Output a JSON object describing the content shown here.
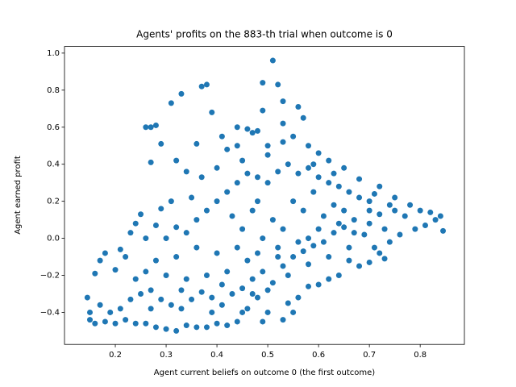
{
  "chart_data": {
    "type": "scatter",
    "title": "Agents' profits on the 883-th trial when outcome is 0",
    "x_label": "Agent current beliefs on outcome 0 (the first outcome)",
    "y_label": "Agent earned profit",
    "color": "#1f77b4",
    "xlim": [
      0.1,
      0.887
    ],
    "ylim": [
      -0.573,
      1.036
    ],
    "xticks": [
      0.2,
      0.3,
      0.4,
      0.5,
      0.6,
      0.7,
      0.8
    ],
    "yticks": [
      {
        "value": -0.4,
        "label": "−0.4"
      },
      {
        "value": -0.2,
        "label": "−0.2"
      },
      {
        "value": 0,
        "label": "0.0"
      },
      0.2,
      0.4,
      0.6,
      0.8,
      {
        "value": 1,
        "label": "1.0"
      }
    ],
    "x": [
      0.51,
      0.49,
      0.52,
      0.38,
      0.37,
      0.33,
      0.31,
      0.53,
      0.49,
      0.56,
      0.39,
      0.27,
      0.28,
      0.26,
      0.44,
      0.46,
      0.48,
      0.36,
      0.29,
      0.27,
      0.32,
      0.42,
      0.44,
      0.5,
      0.47,
      0.53,
      0.57,
      0.55,
      0.58,
      0.6,
      0.62,
      0.65,
      0.68,
      0.72,
      0.75,
      0.78,
      0.8,
      0.82,
      0.84,
      0.845,
      0.83,
      0.81,
      0.79,
      0.77,
      0.74,
      0.72,
      0.7,
      0.73,
      0.76,
      0.74,
      0.72,
      0.73,
      0.7,
      0.68,
      0.66,
      0.64,
      0.62,
      0.6,
      0.58,
      0.56,
      0.54,
      0.55,
      0.53,
      0.49,
      0.5,
      0.48,
      0.46,
      0.44,
      0.42,
      0.4,
      0.38,
      0.36,
      0.34,
      0.32,
      0.3,
      0.28,
      0.26,
      0.24,
      0.22,
      0.2,
      0.18,
      0.16,
      0.15,
      0.15,
      0.145,
      0.17,
      0.19,
      0.21,
      0.23,
      0.25,
      0.27,
      0.29,
      0.31,
      0.33,
      0.35,
      0.37,
      0.39,
      0.41,
      0.43,
      0.45,
      0.47,
      0.49,
      0.51,
      0.53,
      0.55,
      0.57,
      0.59,
      0.61,
      0.63,
      0.65,
      0.67,
      0.69,
      0.66,
      0.62,
      0.58,
      0.54,
      0.5,
      0.46,
      0.42,
      0.38,
      0.34,
      0.3,
      0.26,
      0.22,
      0.2,
      0.18,
      0.16,
      0.17,
      0.21,
      0.23,
      0.25,
      0.24,
      0.26,
      0.28,
      0.3,
      0.32,
      0.34,
      0.36,
      0.38,
      0.4,
      0.42,
      0.44,
      0.46,
      0.48,
      0.5,
      0.52,
      0.54,
      0.56,
      0.58,
      0.6,
      0.62,
      0.64,
      0.66,
      0.68,
      0.7,
      0.35,
      0.31,
      0.37,
      0.4,
      0.43,
      0.45,
      0.47,
      0.49,
      0.51,
      0.53,
      0.55,
      0.57,
      0.59,
      0.61,
      0.63,
      0.65,
      0.67,
      0.6,
      0.56,
      0.52,
      0.48,
      0.44,
      0.4,
      0.36,
      0.32,
      0.28,
      0.24,
      0.27,
      0.33,
      0.39,
      0.45,
      0.41,
      0.47,
      0.52,
      0.58,
      0.64,
      0.7,
      0.71,
      0.75,
      0.71,
      0.34,
      0.29,
      0.41,
      0.45,
      0.53,
      0.59,
      0.63,
      0.48,
      0.5
    ],
    "values": [
      0.96,
      0.84,
      0.83,
      0.83,
      0.82,
      0.78,
      0.73,
      0.74,
      0.69,
      0.71,
      0.68,
      0.6,
      0.61,
      0.6,
      0.6,
      0.59,
      0.58,
      0.51,
      0.51,
      0.41,
      0.42,
      0.48,
      0.5,
      0.5,
      0.57,
      0.62,
      0.65,
      0.55,
      0.5,
      0.46,
      0.42,
      0.38,
      0.32,
      0.28,
      0.22,
      0.18,
      0.15,
      0.14,
      0.12,
      0.04,
      0.1,
      0.07,
      0.05,
      0.12,
      0.18,
      0.13,
      0.2,
      0.05,
      0.02,
      -0.02,
      -0.08,
      -0.11,
      -0.13,
      -0.15,
      -0.12,
      -0.2,
      -0.22,
      -0.25,
      -0.26,
      -0.32,
      -0.35,
      -0.4,
      -0.44,
      -0.45,
      -0.4,
      -0.32,
      -0.38,
      -0.45,
      -0.47,
      -0.46,
      -0.48,
      -0.48,
      -0.47,
      -0.5,
      -0.49,
      -0.48,
      -0.46,
      -0.46,
      -0.44,
      -0.46,
      -0.45,
      -0.46,
      -0.44,
      -0.4,
      -0.32,
      -0.36,
      -0.4,
      -0.38,
      -0.33,
      -0.3,
      -0.28,
      -0.33,
      -0.36,
      -0.38,
      -0.33,
      -0.29,
      -0.32,
      -0.36,
      -0.3,
      -0.27,
      -0.22,
      -0.18,
      -0.24,
      -0.15,
      -0.1,
      -0.07,
      -0.04,
      -0.02,
      0.03,
      0.06,
      0.1,
      0.02,
      -0.05,
      -0.1,
      -0.14,
      -0.2,
      -0.28,
      -0.12,
      -0.18,
      -0.2,
      -0.22,
      -0.2,
      -0.18,
      -0.1,
      -0.17,
      -0.08,
      -0.19,
      -0.12,
      -0.06,
      0.03,
      0.13,
      0.08,
      0.0,
      0.07,
      0.0,
      0.06,
      0.03,
      0.1,
      0.15,
      0.2,
      0.25,
      0.3,
      0.35,
      0.33,
      0.3,
      0.36,
      0.4,
      0.35,
      0.38,
      0.33,
      0.3,
      0.28,
      0.25,
      0.22,
      0.15,
      0.22,
      0.2,
      0.33,
      0.38,
      0.12,
      0.05,
      0.15,
      0.0,
      0.1,
      0.05,
      0.2,
      0.15,
      0.25,
      0.12,
      0.18,
      0.15,
      0.03,
      0.05,
      -0.02,
      -0.05,
      -0.08,
      -0.05,
      -0.08,
      -0.05,
      -0.1,
      -0.12,
      -0.22,
      -0.38,
      -0.28,
      -0.4,
      -0.4,
      -0.25,
      -0.3,
      -0.1,
      0.0,
      0.08,
      0.08,
      -0.05,
      0.15,
      0.24,
      0.36,
      0.16,
      0.55,
      0.42,
      0.52,
      0.4,
      0.35,
      0.2,
      0.45
    ]
  }
}
